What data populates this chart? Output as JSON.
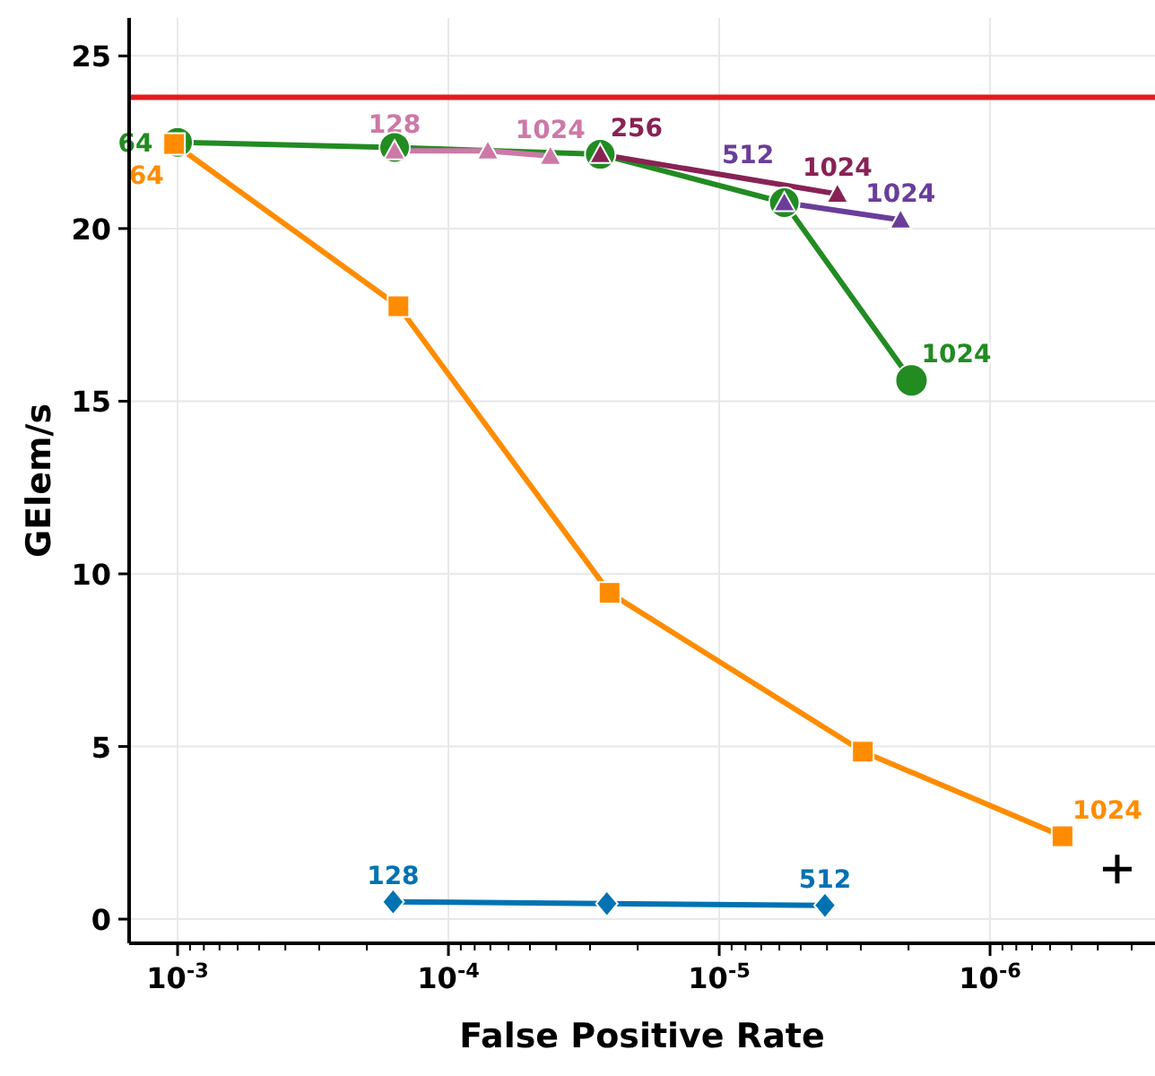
{
  "chart_data": {
    "type": "line",
    "xlabel": "False Positive Rate",
    "ylabel": "GElem/s",
    "log": "x",
    "grid": true,
    "xlim": [
      0.00151,
      2.46e-07
    ],
    "xticks": [
      {
        "value": 0.001,
        "label": "10$^{-3}$"
      },
      {
        "value": 0.0009,
        "label": null
      },
      {
        "value": 0.0008,
        "label": null
      },
      {
        "value": 0.0007,
        "label": null
      },
      {
        "value": 0.0006,
        "label": null
      },
      {
        "value": 0.0005,
        "label": null
      },
      {
        "value": 0.0004,
        "label": null
      },
      {
        "value": 0.0003,
        "label": null
      },
      {
        "value": 0.0002,
        "label": null
      },
      {
        "value": 0.0001,
        "label": "10$^{-4}$"
      },
      {
        "value": 9e-05,
        "label": null
      },
      {
        "value": 8e-05,
        "label": null
      },
      {
        "value": 7e-05,
        "label": null
      },
      {
        "value": 6e-05,
        "label": null
      },
      {
        "value": 5e-05,
        "label": null
      },
      {
        "value": 4e-05,
        "label": null
      },
      {
        "value": 3e-05,
        "label": null
      },
      {
        "value": 2e-05,
        "label": null
      },
      {
        "value": 1e-05,
        "label": "10$^{-5}$"
      },
      {
        "value": 9e-06,
        "label": null
      },
      {
        "value": 8e-06,
        "label": null
      },
      {
        "value": 7e-06,
        "label": null
      },
      {
        "value": 6e-06,
        "label": null
      },
      {
        "value": 5e-06,
        "label": null
      },
      {
        "value": 4e-06,
        "label": null
      },
      {
        "value": 3e-06,
        "label": null
      },
      {
        "value": 2e-06,
        "label": null
      },
      {
        "value": 1e-06,
        "label": "10$^{-6}$"
      },
      {
        "value": 9e-07,
        "label": null
      },
      {
        "value": 8e-07,
        "label": null
      },
      {
        "value": 7e-07,
        "label": null
      },
      {
        "value": 6e-07,
        "label": null
      },
      {
        "value": 5e-07,
        "label": null
      },
      {
        "value": 4e-07,
        "label": null
      },
      {
        "value": 3e-07,
        "label": null
      }
    ],
    "ylim": [
      -0.7,
      26.1
    ],
    "yticks": [
      0,
      5,
      10,
      15,
      20,
      25
    ],
    "ref_lines": [
      {
        "axis": "y",
        "value": 23.8,
        "color": "#e41a1c"
      }
    ],
    "series": [
      {
        "color": "#228b22",
        "marker": "circle",
        "x": [
          0.001,
          0.000158,
          2.75e-05,
          5.75e-06,
          1.95e-06
        ],
        "values": [
          22.5,
          22.35,
          22.15,
          20.75,
          15.6
        ]
      },
      {
        "color": "#ff8c00",
        "marker": "square",
        "x": [
          0.00103,
          0.000153,
          2.54e-05,
          2.95e-06,
          5.4e-07
        ],
        "values": [
          22.45,
          17.75,
          9.45,
          4.85,
          2.4
        ]
      },
      {
        "color": "#cc79a7",
        "marker": "triangle",
        "x": [
          0.000158,
          7.15e-05,
          4.2e-05
        ],
        "values": [
          22.25,
          22.25,
          22.1
        ]
      },
      {
        "color": "#882255",
        "marker": "triangle",
        "x": [
          2.75e-05,
          3.66e-06
        ],
        "values": [
          22.15,
          21.0
        ]
      },
      {
        "color": "#6a3d9a",
        "marker": "triangle",
        "x": [
          5.75e-06,
          2.14e-06
        ],
        "values": [
          20.75,
          20.25
        ]
      },
      {
        "color": "#0072b2",
        "marker": "diamond",
        "x": [
          0.00016,
          2.6e-05,
          4.07e-06
        ],
        "values": [
          0.5,
          0.45,
          0.4
        ]
      },
      {
        "type": "scatter",
        "color": "#000000",
        "marker": "cross",
        "x": [
          3.39e-07
        ],
        "values": [
          1.45
        ]
      }
    ],
    "annotations": [
      {
        "text": "64",
        "x": 0.001,
        "y": 22.5
      },
      {
        "text": "1024",
        "x": 1.95e-06,
        "y": 15.6
      },
      {
        "text": "64",
        "x": 0.00103,
        "y": 22.45
      },
      {
        "text": "1024",
        "x": 5.4e-07,
        "y": 2.4
      },
      {
        "text": "128",
        "x": 0.000158,
        "y": 22.25
      },
      {
        "text": "1024",
        "x": 4.2e-05,
        "y": 22.1
      },
      {
        "text": "256",
        "x": 2.75e-05,
        "y": 22.15
      },
      {
        "text": "1024",
        "x": 3.66e-06,
        "y": 21.0
      },
      {
        "text": "512",
        "x": 5.75e-06,
        "y": 20.75
      },
      {
        "text": "1024",
        "x": 2.14e-06,
        "y": 20.25
      },
      {
        "text": "128",
        "x": 0.00016,
        "y": 0.5
      },
      {
        "text": "512",
        "x": 4.07e-06,
        "y": 0.4
      }
    ]
  }
}
